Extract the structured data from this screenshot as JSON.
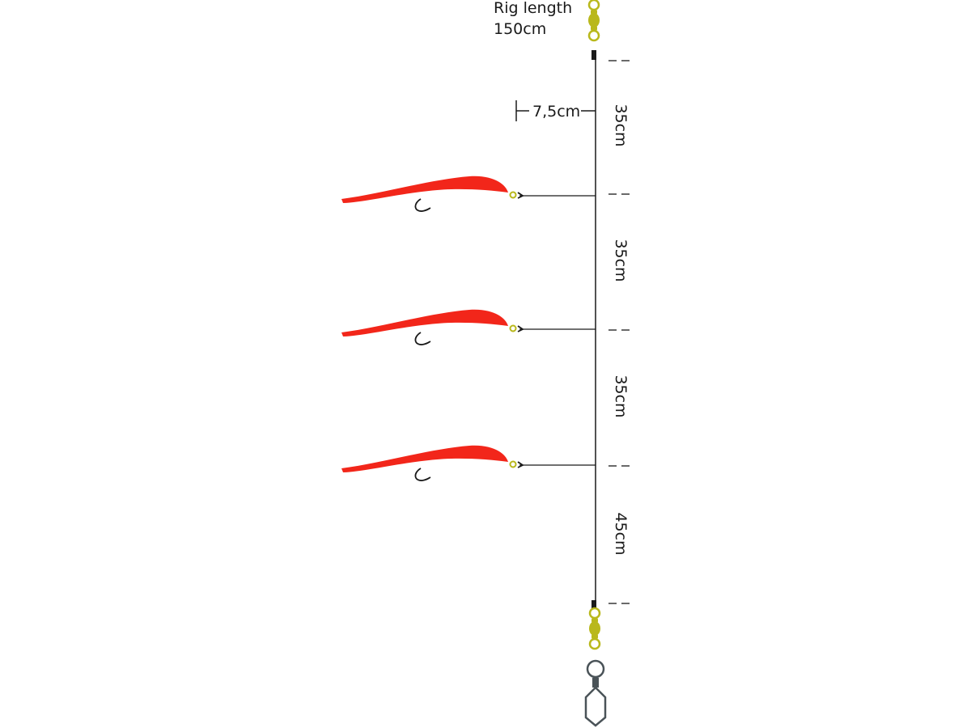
{
  "rig": {
    "title_line1": "Rig length",
    "title_line2": "150cm",
    "snood_length": "7,5cm",
    "segments": [
      "35cm",
      "35cm",
      "35cm",
      "45cm"
    ],
    "lure_count": 3
  },
  "colors": {
    "line": "#1a1a1a",
    "lure": "#f2261a",
    "swivel": "#b9b81c",
    "snap": "#4a5358"
  }
}
